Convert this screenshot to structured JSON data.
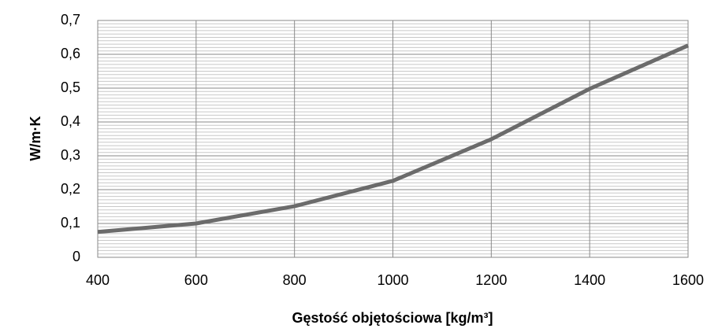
{
  "chart_data": {
    "type": "line",
    "x_label": "Gęstość objętościowa [kg/m³]",
    "y_label": "W/m·K",
    "x": [
      400,
      600,
      800,
      1000,
      1200,
      1400,
      1600
    ],
    "values": [
      0.075,
      0.1,
      0.151,
      0.226,
      0.349,
      0.498,
      0.626
    ],
    "color": "#6b6b6b",
    "xlim": [
      400,
      1600
    ],
    "xticks": [
      400,
      600,
      800,
      1000,
      1200,
      1400,
      1600
    ],
    "ylim": [
      0,
      0.7
    ],
    "yticks": [
      0,
      {
        "value": 0.1,
        "label": "0,1"
      },
      {
        "value": 0.2,
        "label": "0,2"
      },
      {
        "value": 0.3,
        "label": "0,3"
      },
      {
        "value": 0.4,
        "label": "0,4"
      },
      {
        "value": 0.5,
        "label": "0,5"
      },
      {
        "value": 0.6,
        "label": "0,6"
      },
      {
        "value": 0.7,
        "label": "0,7"
      }
    ],
    "grid": true,
    "minor_grid": true
  }
}
